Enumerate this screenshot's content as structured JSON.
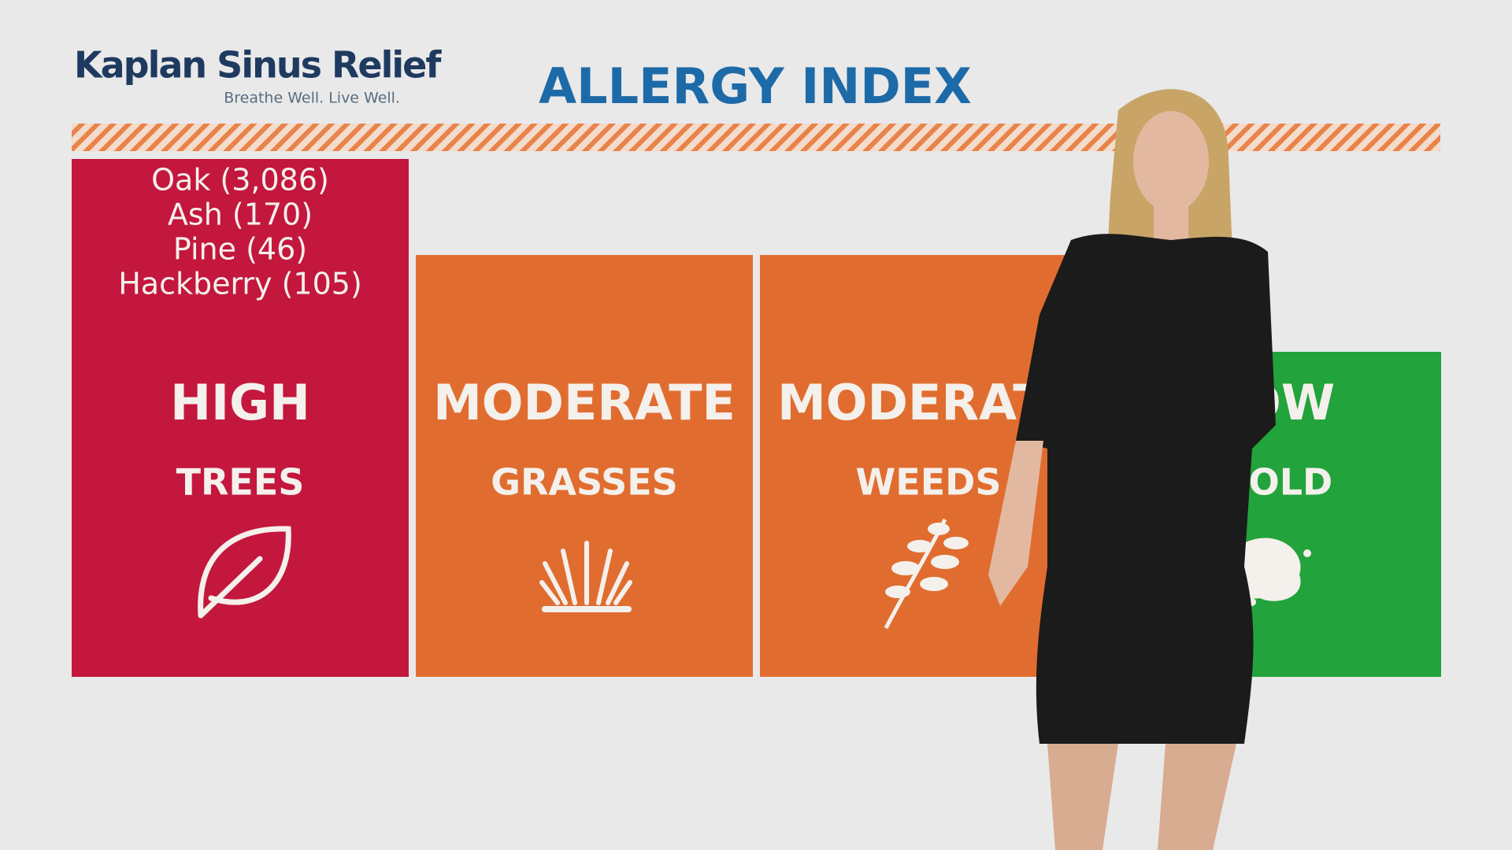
{
  "header": {
    "logo": "Kaplan Sinus Relief",
    "tagline": "Breathe Well.  Live Well.",
    "title": "ALLERGY INDEX"
  },
  "panels": [
    {
      "level": "HIGH",
      "type": "TREES",
      "details": [
        "Oak (3,086)",
        "Ash (170)",
        "Pine (46)",
        "Hackberry (105)"
      ]
    },
    {
      "level": "MODERATE",
      "type": "GRASSES"
    },
    {
      "level": "MODERATE",
      "type": "WEEDS"
    },
    {
      "level": "LOW",
      "type": "MOLD"
    }
  ]
}
